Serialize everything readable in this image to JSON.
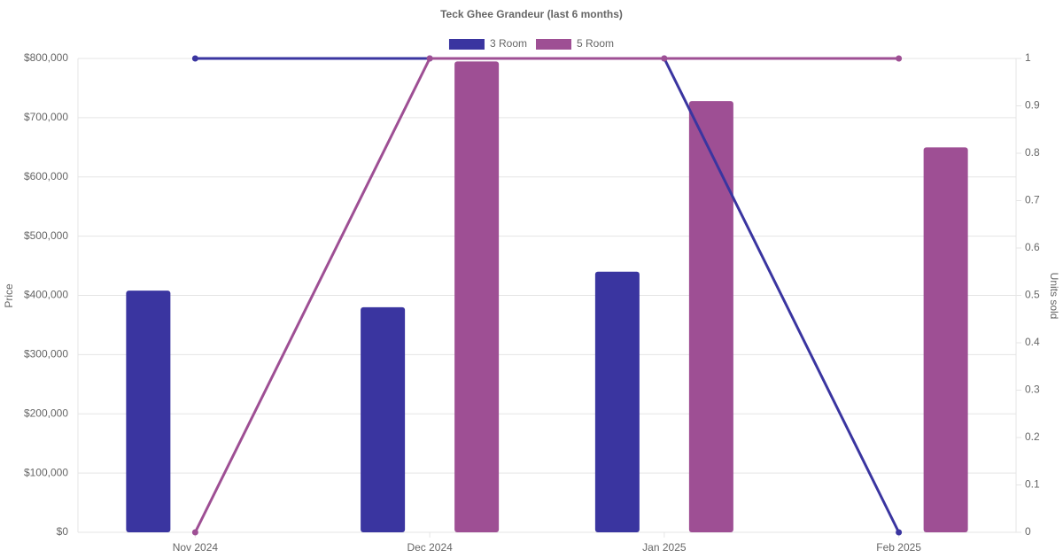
{
  "chart_data": {
    "type": "bar-line",
    "title": "Teck Ghee Grandeur (last 6 months)",
    "categories": [
      "Nov 2024",
      "Dec 2024",
      "Jan 2025",
      "Feb 2025"
    ],
    "series": [
      {
        "name": "3 Room",
        "color": "#3a35a0",
        "values": [
          408000,
          380000,
          440000,
          null
        ],
        "units_sold": [
          1,
          1,
          1,
          0
        ]
      },
      {
        "name": "5 Room",
        "color": "#9e4f94",
        "values": [
          null,
          795000,
          728000,
          650000
        ],
        "units_sold": [
          0,
          1,
          1,
          1
        ]
      }
    ],
    "ylabel": "Price",
    "y2label": "Units sold",
    "ylim": [
      0,
      800000
    ],
    "yticks": [
      {
        "value": 0,
        "label": "$0"
      },
      {
        "value": 100000,
        "label": "$100,000"
      },
      {
        "value": 200000,
        "label": "$200,000"
      },
      {
        "value": 300000,
        "label": "$300,000"
      },
      {
        "value": 400000,
        "label": "$400,000"
      },
      {
        "value": 500000,
        "label": "$500,000"
      },
      {
        "value": 600000,
        "label": "$600,000"
      },
      {
        "value": 700000,
        "label": "$700,000"
      },
      {
        "value": 800000,
        "label": "$800,000"
      }
    ],
    "y2lim": [
      0,
      1
    ],
    "y2ticks": [
      0,
      0.1,
      0.2,
      0.3,
      0.4,
      0.5,
      0.6,
      0.7,
      0.8,
      0.9,
      1
    ],
    "grid": true,
    "legend": "top"
  }
}
